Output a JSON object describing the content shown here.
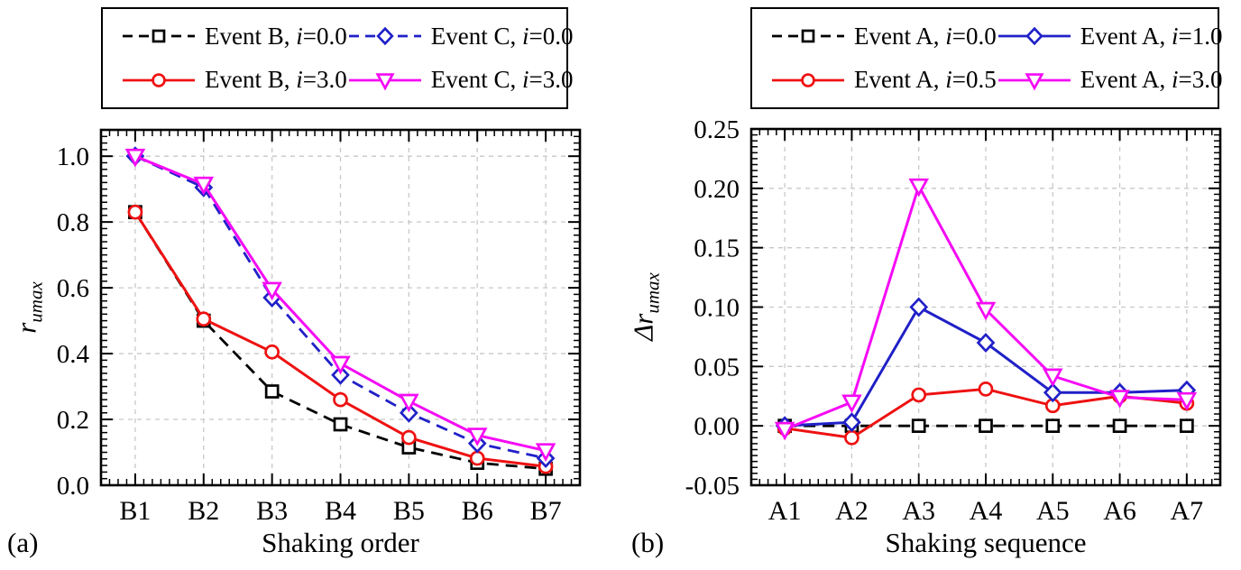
{
  "figure": {
    "background": "#ffffff",
    "text_color": "#000000",
    "grid_color": "#c8c8c8",
    "axis_color": "#000000"
  },
  "chart_data": [
    {
      "type": "line",
      "panel_tag": "(a)",
      "title": "",
      "xlabel": "Shaking order",
      "ylabel": "r_umax",
      "ylabel_parts": {
        "delta": "",
        "main": "r",
        "sub": "umax"
      },
      "categories": [
        "B1",
        "B2",
        "B3",
        "B4",
        "B5",
        "B6",
        "B7"
      ],
      "ylim": [
        0,
        1.08
      ],
      "yticks": [
        0.0,
        0.2,
        0.4,
        0.6,
        0.8,
        1.0
      ],
      "ytick_labels": [
        "0.0",
        "0.2",
        "0.4",
        "0.6",
        "0.8",
        "1.0"
      ],
      "y_minor_step": 0.02,
      "grid": true,
      "legend_position": "top",
      "series": [
        {
          "name": "Event B, i=0.0",
          "legend_parts": {
            "pre": "Event B, ",
            "var": "i",
            "post": "=0.0"
          },
          "color": "#000000",
          "line": "dashed",
          "marker": "square",
          "values": [
            0.83,
            0.5,
            0.285,
            0.185,
            0.115,
            0.068,
            0.05
          ]
        },
        {
          "name": "Event B, i=3.0",
          "legend_parts": {
            "pre": "Event B, ",
            "var": "i",
            "post": "=3.0"
          },
          "color": "#ee1111",
          "line": "solid",
          "marker": "circle",
          "values": [
            0.83,
            0.505,
            0.405,
            0.26,
            0.145,
            0.082,
            0.057
          ]
        },
        {
          "name": "Event C, i=0.0",
          "legend_parts": {
            "pre": "Event C, ",
            "var": "i",
            "post": "=0.0"
          },
          "color": "#2020c8",
          "line": "dashed",
          "marker": "diamond",
          "values": [
            1.0,
            0.905,
            0.57,
            0.335,
            0.22,
            0.127,
            0.082
          ]
        },
        {
          "name": "Event C, i=3.0",
          "legend_parts": {
            "pre": "Event C, ",
            "var": "i",
            "post": "=3.0"
          },
          "color": "#f50af5",
          "line": "solid",
          "marker": "triangle-down",
          "values": [
            1.0,
            0.915,
            0.595,
            0.37,
            0.255,
            0.152,
            0.105
          ]
        }
      ]
    },
    {
      "type": "line",
      "panel_tag": "(b)",
      "title": "",
      "xlabel": "Shaking sequence",
      "ylabel": "Δr_umax",
      "ylabel_parts": {
        "delta": "Δ",
        "main": "r",
        "sub": "umax"
      },
      "categories": [
        "A1",
        "A2",
        "A3",
        "A4",
        "A5",
        "A6",
        "A7"
      ],
      "ylim": [
        -0.05,
        0.25
      ],
      "yticks": [
        -0.05,
        0.0,
        0.05,
        0.1,
        0.15,
        0.2,
        0.25
      ],
      "ytick_labels": [
        "-0.05",
        "0.00",
        "0.05",
        "0.10",
        "0.15",
        "0.20",
        "0.25"
      ],
      "y_minor_step": 0.005,
      "grid": true,
      "legend_position": "top",
      "series": [
        {
          "name": "Event A, i=0.0",
          "legend_parts": {
            "pre": "Event A, ",
            "var": "i",
            "post": "=0.0"
          },
          "color": "#000000",
          "line": "dashed",
          "marker": "square",
          "values": [
            0.0,
            0.0,
            0.0,
            0.0,
            0.0,
            0.0,
            0.0
          ]
        },
        {
          "name": "Event A, i=0.5",
          "legend_parts": {
            "pre": "Event A, ",
            "var": "i",
            "post": "=0.5"
          },
          "color": "#ee1111",
          "line": "solid",
          "marker": "circle",
          "values": [
            -0.002,
            -0.01,
            0.026,
            0.031,
            0.017,
            0.025,
            0.019
          ]
        },
        {
          "name": "Event A, i=1.0",
          "legend_parts": {
            "pre": "Event A, ",
            "var": "i",
            "post": "=1.0"
          },
          "color": "#2020c8",
          "line": "solid",
          "marker": "diamond",
          "values": [
            0.0,
            0.003,
            0.1,
            0.07,
            0.028,
            0.028,
            0.03
          ]
        },
        {
          "name": "Event A, i=3.0",
          "legend_parts": {
            "pre": "Event A, ",
            "var": "i",
            "post": "=3.0"
          },
          "color": "#f50af5",
          "line": "solid",
          "marker": "triangle-down",
          "values": [
            -0.003,
            0.02,
            0.202,
            0.098,
            0.042,
            0.024,
            0.022
          ]
        }
      ]
    }
  ]
}
